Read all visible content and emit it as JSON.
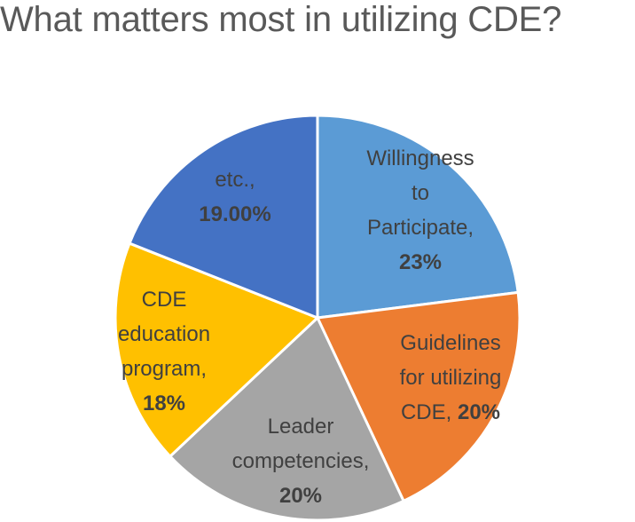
{
  "chart_data": {
    "type": "pie",
    "title": "What matters most in utilizing CDE?",
    "start_angle_deg": 0,
    "direction": "clockwise",
    "slices": [
      {
        "category": "Willingness to Participate",
        "value": 23,
        "value_label": "23%",
        "label_lines": [
          "Willingness",
          "to",
          "Participate,"
        ],
        "color": "#5B9BD5"
      },
      {
        "category": "Guidelines for utilizing CDE",
        "value": 20,
        "value_label": "20%",
        "label_lines": [
          "Guidelines",
          "for utilizing",
          "CDE,"
        ],
        "color": "#ED7D31"
      },
      {
        "category": "Leader competencies",
        "value": 20,
        "value_label": "20%",
        "label_lines": [
          "Leader",
          "competencies,"
        ],
        "color": "#A5A5A5"
      },
      {
        "category": "CDE education program",
        "value": 18,
        "value_label": "18%",
        "label_lines": [
          "CDE",
          "education",
          "program,"
        ],
        "color": "#FFC000"
      },
      {
        "category": "etc.",
        "value": 19,
        "value_label": "19.00%",
        "label_lines": [
          "etc.,"
        ],
        "color": "#4472C4"
      }
    ]
  }
}
